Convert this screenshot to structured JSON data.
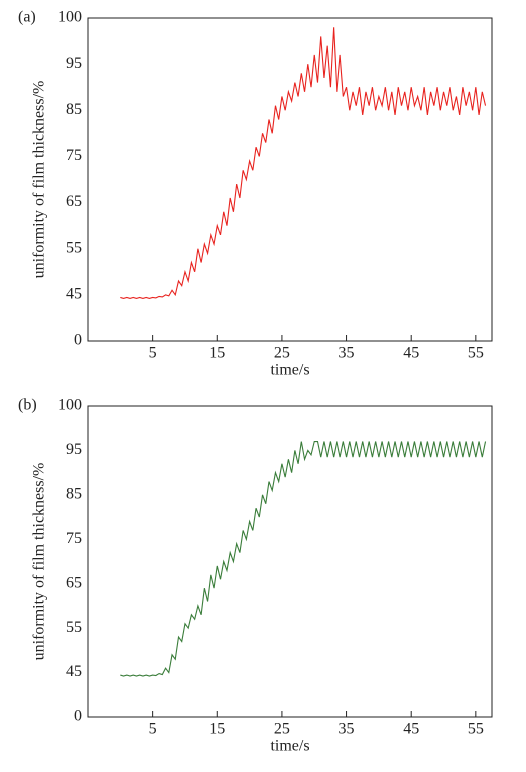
{
  "chart_data": [
    {
      "type": "line",
      "label": "(a)",
      "xlabel": "time/s",
      "ylabel": "uniformity of film thickness/%",
      "color": "#e8231f",
      "xlim": [
        -5,
        57.5
      ],
      "xticks": [
        5,
        15,
        25,
        35,
        45,
        55
      ],
      "ylim": [
        0,
        100
      ],
      "yticks": [
        0,
        45,
        55,
        65,
        75,
        85,
        95,
        100
      ],
      "x": [
        0,
        0.5,
        1,
        1.5,
        2,
        2.5,
        3,
        3.5,
        4,
        4.5,
        5,
        5.5,
        6,
        6.5,
        7,
        7.5,
        8,
        8.5,
        9,
        9.5,
        10,
        10.5,
        11,
        11.5,
        12,
        12.5,
        13,
        13.5,
        14,
        14.5,
        15,
        15.5,
        16,
        16.5,
        17,
        17.5,
        18,
        18.5,
        19,
        19.5,
        20,
        20.5,
        21,
        21.5,
        22,
        22.5,
        23,
        23.5,
        24,
        24.5,
        25,
        25.5,
        26,
        26.5,
        27,
        27.5,
        28,
        28.5,
        29,
        29.5,
        30,
        30.5,
        31,
        31.5,
        32,
        32.5,
        33,
        33.5,
        34,
        34.5,
        35,
        35.5,
        36,
        36.5,
        37,
        37.5,
        38,
        38.5,
        39,
        39.5,
        40,
        40.5,
        41,
        41.5,
        42,
        42.5,
        43,
        43.5,
        44,
        44.5,
        45,
        45.5,
        46,
        46.5,
        47,
        47.5,
        48,
        48.5,
        49,
        49.5,
        50,
        50.5,
        51,
        51.5,
        52,
        52.5,
        53,
        53.5,
        54,
        54.5,
        55,
        55.5,
        56,
        56.5
      ],
      "values": [
        42.5,
        41.5,
        42.5,
        41.5,
        42.5,
        41.5,
        42.5,
        41.5,
        42.5,
        41.5,
        42.5,
        42,
        43.5,
        43,
        45,
        44,
        46,
        45,
        48,
        47,
        50,
        48,
        52,
        50,
        55,
        52,
        56,
        54,
        58,
        56,
        60,
        58,
        63,
        60,
        66,
        63,
        69,
        66,
        72,
        70,
        74,
        72,
        77,
        75,
        80,
        78,
        83,
        80,
        86,
        83,
        88,
        85,
        89,
        87,
        91,
        88,
        93,
        89,
        95,
        90,
        96,
        91,
        98,
        92,
        97,
        90,
        99,
        89,
        96,
        88,
        90,
        85,
        89,
        86,
        90,
        84,
        89,
        86,
        90,
        85,
        88,
        86,
        90,
        85,
        89,
        84,
        90,
        86,
        89,
        85,
        90,
        86,
        88,
        85,
        90,
        84,
        89,
        86,
        90,
        85,
        89,
        86,
        90,
        85,
        88,
        84,
        90,
        86,
        89,
        85,
        90,
        84,
        89,
        86
      ]
    },
    {
      "type": "line",
      "label": "(b)",
      "xlabel": "time/s",
      "ylabel": "uniformity of film thickness/%",
      "color": "#3a7d3a",
      "xlim": [
        -5,
        57.5
      ],
      "xticks": [
        5,
        15,
        25,
        35,
        45,
        55
      ],
      "ylim": [
        0,
        100
      ],
      "yticks": [
        0,
        45,
        55,
        65,
        75,
        85,
        95,
        100
      ],
      "x": [
        0,
        0.5,
        1,
        1.5,
        2,
        2.5,
        3,
        3.5,
        4,
        4.5,
        5,
        5.5,
        6,
        6.5,
        7,
        7.5,
        8,
        8.5,
        9,
        9.5,
        10,
        10.5,
        11,
        11.5,
        12,
        12.5,
        13,
        13.5,
        14,
        14.5,
        15,
        15.5,
        16,
        16.5,
        17,
        17.5,
        18,
        18.5,
        19,
        19.5,
        20,
        20.5,
        21,
        21.5,
        22,
        22.5,
        23,
        23.5,
        24,
        24.5,
        25,
        25.5,
        26,
        26.5,
        27,
        27.5,
        28,
        28.5,
        29,
        29.5,
        30,
        30.5,
        31,
        31.5,
        32,
        32.5,
        33,
        33.5,
        34,
        34.5,
        35,
        35.5,
        36,
        36.5,
        37,
        37.5,
        38,
        38.5,
        39,
        39.5,
        40,
        40.5,
        41,
        41.5,
        42,
        42.5,
        43,
        43.5,
        44,
        44.5,
        45,
        45.5,
        46,
        46.5,
        47,
        47.5,
        48,
        48.5,
        49,
        49.5,
        50,
        50.5,
        51,
        51.5,
        52,
        52.5,
        53,
        53.5,
        54,
        54.5,
        55,
        55.5,
        56,
        56.5
      ],
      "values": [
        42.5,
        41.5,
        42.5,
        41.5,
        42.5,
        41.5,
        42.5,
        41.5,
        42.5,
        41.5,
        42.5,
        42,
        44,
        43,
        46,
        45,
        49,
        48,
        53,
        52,
        56,
        55,
        58,
        57,
        60,
        58,
        64,
        61,
        67,
        64,
        69,
        66,
        70,
        68,
        72,
        70,
        74,
        72,
        77,
        75,
        79,
        77,
        82,
        80,
        85,
        83,
        88,
        86,
        90,
        88,
        92,
        89,
        93,
        90,
        95,
        92,
        96,
        93,
        95,
        94,
        96,
        96,
        93.5,
        96,
        93.5,
        96,
        93.5,
        96,
        93.5,
        96,
        93.5,
        96,
        93.5,
        96,
        93.5,
        96,
        93.5,
        96,
        93.5,
        96,
        93.5,
        96,
        93.5,
        96,
        93.5,
        96,
        93.5,
        96,
        93.5,
        96,
        93.5,
        96,
        93.5,
        96,
        93.5,
        96,
        93.5,
        96,
        93.5,
        96,
        93.5,
        96,
        93.5,
        96,
        93.5,
        96,
        93.5,
        96,
        93.5,
        96,
        93.5,
        96,
        93.5,
        96
      ]
    }
  ]
}
